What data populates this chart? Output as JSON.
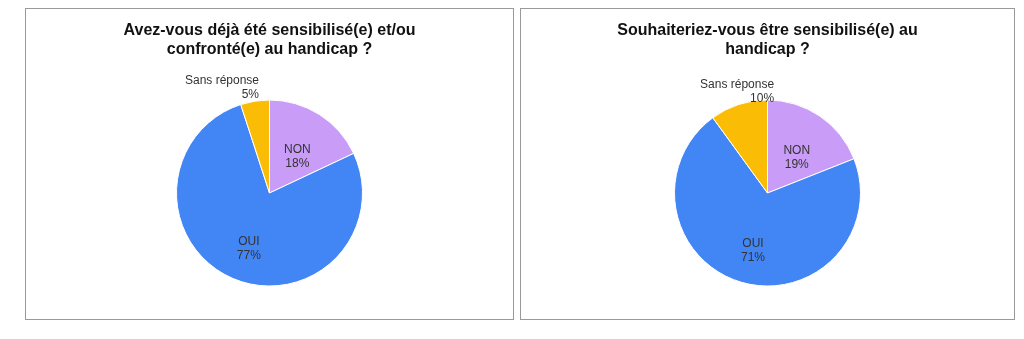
{
  "chart_data": [
    {
      "type": "pie",
      "title": "Avez-vous déjà été sensibilisé(e) et/ou confronté(e) au handicap ?",
      "categories": [
        "NON",
        "OUI",
        "Sans réponse"
      ],
      "values": [
        18,
        77,
        5
      ],
      "value_labels": [
        "18%",
        "77%",
        "5%"
      ],
      "colors": [
        "#c89cf7",
        "#4285f4",
        "#fbbc05"
      ],
      "legend": false
    },
    {
      "type": "pie",
      "title": "Souhaiteriez-vous être sensibilisé(e) au handicap ?",
      "categories": [
        "NON",
        "OUI",
        "Sans réponse"
      ],
      "values": [
        19,
        71,
        10
      ],
      "value_labels": [
        "19%",
        "71%",
        "10%"
      ],
      "colors": [
        "#c89cf7",
        "#4285f4",
        "#fbbc05"
      ],
      "legend": false
    }
  ]
}
